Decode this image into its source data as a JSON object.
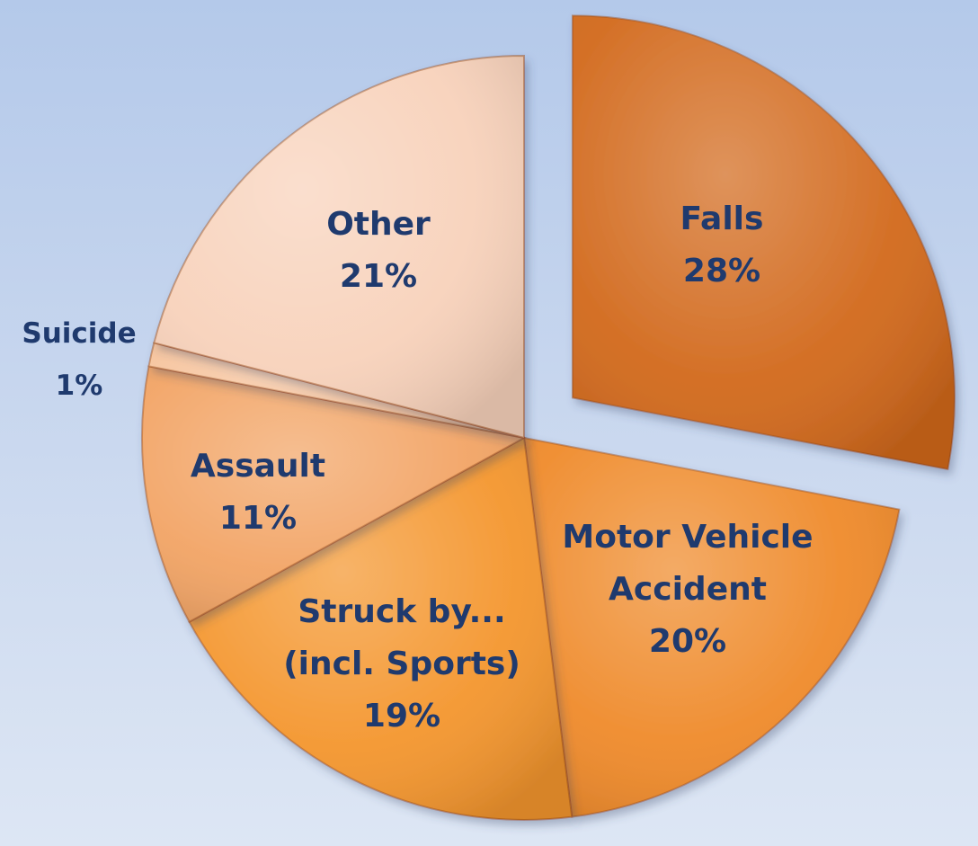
{
  "chart_data": {
    "type": "pie",
    "title": "",
    "start_angle_deg": 0,
    "direction": "clockwise",
    "exploded": "Falls",
    "slices": [
      {
        "label": [
          "Falls"
        ],
        "pct_label": "28%",
        "value": 28,
        "color": "#d2691c"
      },
      {
        "label": [
          "Motor Vehicle",
          "Accident"
        ],
        "pct_label": "20%",
        "value": 20,
        "color": "#ef8a2a"
      },
      {
        "label": [
          "Struck by...",
          "(incl. Sports)"
        ],
        "pct_label": "19%",
        "value": 19,
        "color": "#f4962e"
      },
      {
        "label": [
          "Assault"
        ],
        "pct_label": "11%",
        "value": 11,
        "color": "#f2a465"
      },
      {
        "label": [
          "Suicide"
        ],
        "pct_label": "1%",
        "value": 1,
        "color": "#f6c39c"
      },
      {
        "label": [
          "Other"
        ],
        "pct_label": "21%",
        "value": 21,
        "color": "#f8d2bb"
      }
    ],
    "colors": {
      "label_text": "#1f3a6e",
      "slice_edge": "#9a4a10"
    }
  }
}
